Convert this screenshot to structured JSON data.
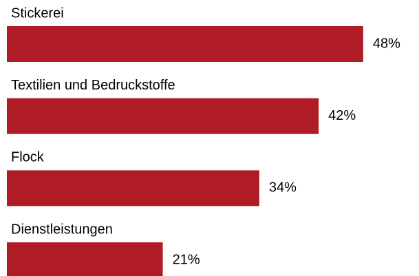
{
  "chart_data": {
    "type": "bar",
    "orientation": "horizontal",
    "categories": [
      "Stickerei",
      "Textilien und Bedruckstoffe",
      "Flock",
      "Dienstleistungen"
    ],
    "values": [
      48,
      42,
      34,
      21
    ],
    "value_labels": [
      "48%",
      "42%",
      "34%",
      "21%"
    ],
    "color": "#b01c26"
  }
}
